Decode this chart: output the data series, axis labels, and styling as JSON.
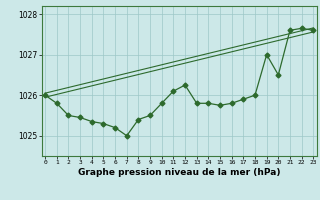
{
  "title": "Graphe pression niveau de la mer (hPa)",
  "x_values": [
    0,
    1,
    2,
    3,
    4,
    5,
    6,
    7,
    8,
    9,
    10,
    11,
    12,
    13,
    14,
    15,
    16,
    17,
    18,
    19,
    20,
    21,
    22,
    23
  ],
  "y_main": [
    1026.0,
    1025.8,
    1025.5,
    1025.45,
    1025.35,
    1025.3,
    1025.2,
    1025.0,
    1025.4,
    1025.5,
    1025.8,
    1026.1,
    1026.25,
    1025.8,
    1025.8,
    1025.75,
    1025.8,
    1025.9,
    1026.0,
    1027.0,
    1026.5,
    1027.6,
    1027.65,
    1027.6
  ],
  "y_trend1": [
    1025.95,
    1026.02,
    1026.09,
    1026.16,
    1026.23,
    1026.3,
    1026.37,
    1026.44,
    1026.51,
    1026.58,
    1026.65,
    1026.72,
    1026.79,
    1026.86,
    1026.93,
    1027.0,
    1027.07,
    1027.14,
    1027.21,
    1027.28,
    1027.35,
    1027.42,
    1027.49,
    1027.56
  ],
  "y_trend2": [
    1026.05,
    1026.12,
    1026.19,
    1026.26,
    1026.33,
    1026.4,
    1026.47,
    1026.54,
    1026.61,
    1026.68,
    1026.75,
    1026.82,
    1026.89,
    1026.96,
    1027.03,
    1027.1,
    1027.17,
    1027.24,
    1027.31,
    1027.38,
    1027.45,
    1027.52,
    1027.59,
    1027.66
  ],
  "ylim": [
    1024.5,
    1028.2
  ],
  "yticks": [
    1025,
    1026,
    1027,
    1028
  ],
  "line_color": "#2d6a2d",
  "bg_color": "#cce8e8",
  "grid_color": "#9ec8c8",
  "title_fontsize": 6.5,
  "marker": "D",
  "marker_size": 2.5
}
